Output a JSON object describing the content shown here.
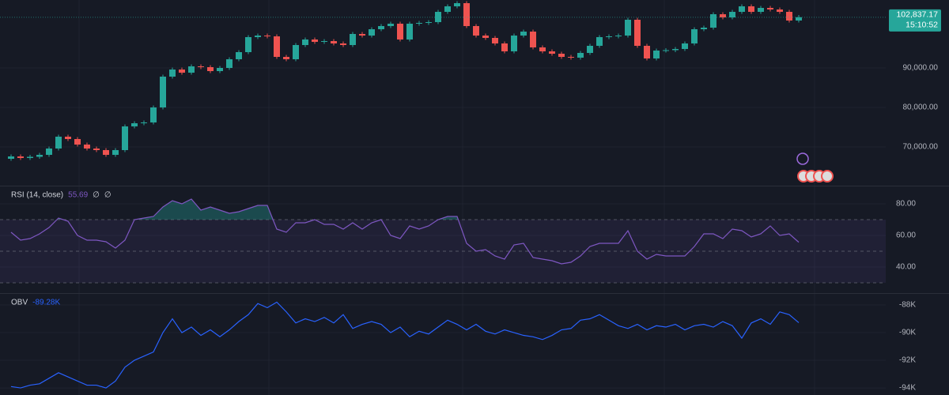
{
  "chart_data": [
    {
      "type": "candlestick",
      "open": [
        67000,
        67600,
        67200,
        67500,
        68000,
        69600,
        72600,
        72000,
        70600,
        69600,
        69200,
        68000,
        69200,
        75200,
        76000,
        76200,
        80000,
        87800,
        89600,
        88800,
        90400,
        90200,
        89200,
        90000,
        92200,
        94000,
        97800,
        98200,
        98000,
        92800,
        92200,
        95800,
        97200,
        96600,
        96800,
        96200,
        95800,
        98600,
        98200,
        99800,
        100600,
        101200,
        97200,
        101200,
        101400,
        101600,
        104200,
        105600,
        106400,
        100600,
        98200,
        97600,
        96200,
        94200,
        98200,
        99200,
        95200,
        94200,
        93600,
        92800,
        92600,
        93800,
        95600,
        97800,
        98000,
        98200,
        102200,
        95600,
        92400,
        94400,
        94500,
        94800,
        96200,
        99800,
        100200,
        103600,
        102800,
        104200,
        105600,
        104200,
        105200,
        104800,
        104200,
        102000
      ],
      "high": [
        68100,
        68100,
        68000,
        68500,
        70100,
        73100,
        73100,
        72500,
        71100,
        70100,
        69700,
        69700,
        75700,
        76500,
        76700,
        80500,
        88300,
        90100,
        90100,
        90900,
        90900,
        90700,
        90500,
        92700,
        94500,
        98300,
        98700,
        98700,
        98500,
        93300,
        96300,
        97700,
        97700,
        97300,
        97300,
        96700,
        99100,
        99100,
        100300,
        101100,
        101700,
        101700,
        101700,
        101900,
        102100,
        104700,
        106100,
        106900,
        106900,
        101100,
        98700,
        98100,
        96700,
        98700,
        99700,
        99700,
        95700,
        94700,
        94100,
        93300,
        94300,
        96100,
        98300,
        98500,
        98700,
        102700,
        102700,
        96100,
        94900,
        95000,
        95300,
        96700,
        100300,
        100700,
        104100,
        104100,
        104700,
        106100,
        106100,
        105700,
        105700,
        105300,
        104700,
        103400
      ],
      "low": [
        66500,
        66700,
        66700,
        67000,
        67500,
        69100,
        71500,
        70100,
        69100,
        68700,
        67500,
        67500,
        68700,
        74700,
        75500,
        75700,
        79500,
        87300,
        88300,
        88300,
        89700,
        88700,
        88700,
        89500,
        91700,
        93500,
        97300,
        97500,
        92300,
        91700,
        91700,
        95300,
        96100,
        96100,
        95700,
        95300,
        95300,
        97700,
        97700,
        99300,
        100100,
        96700,
        96700,
        100700,
        100900,
        101100,
        103700,
        105100,
        100100,
        97700,
        97100,
        95700,
        93700,
        93700,
        97700,
        94700,
        93700,
        93100,
        92300,
        92100,
        92100,
        93300,
        95100,
        97300,
        97500,
        97700,
        95100,
        91900,
        91900,
        93900,
        94000,
        94300,
        95700,
        99300,
        99700,
        102300,
        102300,
        103700,
        103700,
        103700,
        104300,
        103700,
        101500,
        101500
      ],
      "close": [
        67600,
        67200,
        67500,
        68000,
        69600,
        72600,
        72000,
        70600,
        69600,
        69200,
        68000,
        69200,
        75200,
        76000,
        76200,
        80000,
        87800,
        89600,
        88800,
        90400,
        90200,
        89200,
        90000,
        92200,
        94000,
        97800,
        98200,
        98000,
        92800,
        92200,
        95800,
        97200,
        96600,
        96800,
        96200,
        95800,
        98600,
        98200,
        99800,
        100600,
        101200,
        97200,
        101200,
        101400,
        101600,
        104200,
        105600,
        106400,
        100600,
        98200,
        97600,
        96200,
        94200,
        98200,
        99200,
        95200,
        94200,
        93600,
        92800,
        92600,
        93800,
        95600,
        97800,
        98000,
        98200,
        102200,
        95600,
        92400,
        94400,
        94500,
        94800,
        96200,
        99800,
        100200,
        103600,
        102800,
        104200,
        105600,
        104200,
        105200,
        104800,
        104200,
        102000,
        102837.17
      ],
      "price_label": "102,837.17",
      "countdown": "15:10:52",
      "up_color": "#26a69a",
      "down_color": "#ef5350",
      "ylim": [
        60200,
        107200
      ],
      "yticks": [
        {
          "value": 90000,
          "label": "90,000.00"
        },
        {
          "value": 80000,
          "label": "80,000.00"
        },
        {
          "value": 70000,
          "label": "70,000.00"
        }
      ]
    },
    {
      "type": "line",
      "title": "RSI (14, close)",
      "last_value_label": "55.69",
      "flags": [
        "∅",
        "∅"
      ],
      "values": [
        62,
        57,
        58,
        61,
        65,
        71,
        69,
        60,
        57,
        57,
        56,
        52,
        57,
        70,
        71,
        72,
        78,
        82,
        80,
        83,
        76,
        78,
        76,
        74,
        75,
        77,
        79,
        79,
        64,
        62,
        68,
        68,
        70,
        67,
        67,
        64,
        68,
        64,
        68,
        70,
        60,
        58,
        66,
        64,
        66,
        70,
        72,
        72,
        55,
        50,
        51,
        47,
        45,
        54,
        55,
        46,
        45,
        44,
        42,
        43,
        47,
        53,
        55,
        55,
        55,
        63,
        50,
        45,
        48,
        47,
        47,
        47,
        53,
        61,
        61,
        58,
        64,
        63,
        59,
        61,
        66,
        60,
        61,
        55.69
      ],
      "color": "#7e57c2",
      "bands": [
        70,
        50,
        30
      ],
      "ylim": [
        24,
        91
      ],
      "yticks": [
        {
          "value": 80,
          "label": "80.00"
        },
        {
          "value": 60,
          "label": "60.00"
        },
        {
          "value": 40,
          "label": "40.00"
        }
      ]
    },
    {
      "type": "line",
      "title": "OBV",
      "last_value_label": "-89.28K",
      "values": [
        -93.9,
        -94.0,
        -93.8,
        -93.7,
        -93.3,
        -92.9,
        -93.2,
        -93.5,
        -93.8,
        -93.8,
        -94.0,
        -93.5,
        -92.5,
        -92.0,
        -91.7,
        -91.4,
        -90.0,
        -89.0,
        -90.0,
        -89.6,
        -90.2,
        -89.8,
        -90.3,
        -89.8,
        -89.2,
        -88.7,
        -87.9,
        -88.2,
        -87.8,
        -88.5,
        -89.3,
        -89.0,
        -89.2,
        -88.9,
        -89.3,
        -88.7,
        -89.7,
        -89.4,
        -89.2,
        -89.4,
        -90.0,
        -89.6,
        -90.3,
        -89.9,
        -90.1,
        -89.6,
        -89.1,
        -89.4,
        -89.8,
        -89.4,
        -89.9,
        -90.1,
        -89.8,
        -90.0,
        -90.2,
        -90.3,
        -90.5,
        -90.2,
        -89.8,
        -89.7,
        -89.1,
        -89.0,
        -88.7,
        -89.1,
        -89.5,
        -89.7,
        -89.4,
        -89.8,
        -89.5,
        -89.6,
        -89.4,
        -89.8,
        -89.5,
        -89.4,
        -89.6,
        -89.2,
        -89.5,
        -90.4,
        -89.3,
        -89.0,
        -89.4,
        -88.5,
        -88.7,
        -89.28
      ],
      "color": "#2962ff",
      "ylim": [
        -94.51,
        -87.2
      ],
      "yticks": [
        {
          "value": -88,
          "label": "-88K"
        },
        {
          "value": -90,
          "label": "-90K"
        },
        {
          "value": -92,
          "label": "-92K"
        },
        {
          "value": -94,
          "label": "-94K"
        }
      ]
    }
  ]
}
